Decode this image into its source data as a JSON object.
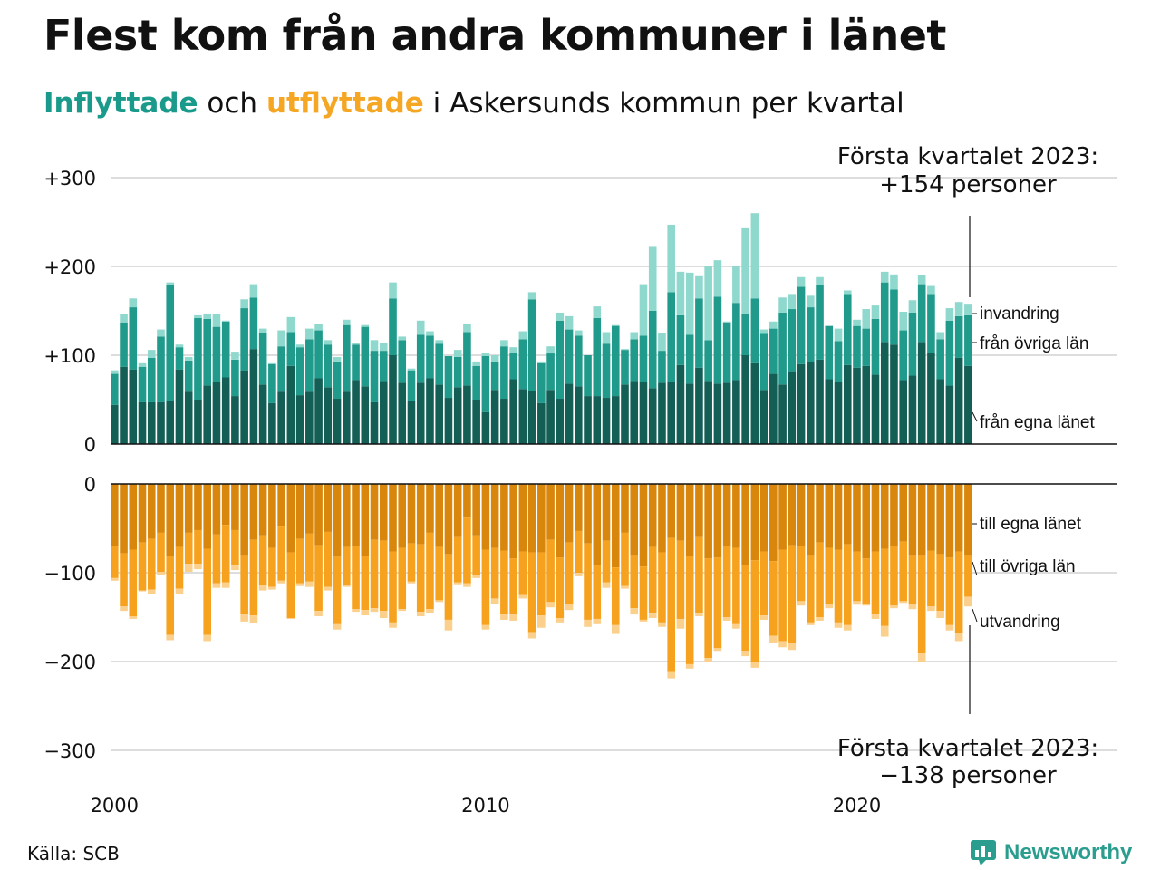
{
  "title": "Flest kom från andra kommuner i länet",
  "subtitle": {
    "part1": "Inflyttade",
    "part2": " och ",
    "part3": "utflyttade",
    "part4": " i Askersunds kommun per kvartal"
  },
  "annotations": {
    "top_line1": "Första kvartalet 2023:",
    "top_line2": "+154 personer",
    "bottom_line1": "Första kvartalet 2023:",
    "bottom_line2": "−138 personer"
  },
  "source": "Källa: SCB",
  "brand": "Newsworthy",
  "colors": {
    "in_own": "#135e55",
    "in_other": "#1f9a8b",
    "in_immigration": "#8fd8cd",
    "out_own": "#d9860c",
    "out_other": "#f7a21f",
    "out_emigration": "#fbd08c",
    "grid": "#dddddd",
    "brand": "#2a9d8f"
  },
  "chart_data": {
    "type": "bar",
    "stacked": true,
    "x_start": "2000 Q1",
    "x_end": "2023 Q1",
    "x_ticks": [
      "2000",
      "2010",
      "2020"
    ],
    "inflow": {
      "ylim": [
        0,
        300
      ],
      "y_ticks": [
        "0",
        "+100",
        "+200",
        "+300"
      ],
      "series": [
        {
          "name": "från egna länet",
          "values": [
            44,
            87,
            84,
            47,
            47,
            47,
            48,
            84,
            59,
            50,
            66,
            70,
            75,
            54,
            83,
            107,
            67,
            46,
            59,
            88,
            55,
            59,
            74,
            64,
            51,
            59,
            72,
            65,
            47,
            71,
            100,
            69,
            49,
            69,
            74,
            67,
            52,
            64,
            66,
            50,
            36,
            61,
            51,
            73,
            62,
            60,
            46,
            61,
            51,
            68,
            65,
            54,
            54,
            52,
            54,
            67,
            71,
            70,
            63,
            69,
            70,
            89,
            68,
            86,
            71,
            68,
            69,
            72,
            100,
            91,
            61,
            79,
            67,
            82,
            90,
            92,
            95,
            73,
            70,
            89,
            86,
            88,
            78,
            115,
            112,
            72,
            77,
            115,
            103,
            73,
            66,
            97,
            88
          ],
          "note": "approx"
        },
        {
          "name": "från övriga län",
          "values": [
            35,
            50,
            70,
            40,
            50,
            74,
            131,
            25,
            35,
            92,
            75,
            62,
            63,
            41,
            70,
            58,
            58,
            44,
            51,
            38,
            54,
            59,
            54,
            48,
            42,
            75,
            40,
            67,
            58,
            34,
            64,
            48,
            34,
            54,
            48,
            46,
            47,
            34,
            60,
            38,
            63,
            31,
            59,
            30,
            56,
            103,
            45,
            41,
            88,
            61,
            57,
            46,
            88,
            61,
            79,
            39,
            47,
            52,
            87,
            36,
            101,
            56,
            55,
            78,
            46,
            98,
            68,
            87,
            46,
            73,
            63,
            51,
            81,
            70,
            87,
            62,
            84,
            60,
            46,
            80,
            47,
            42,
            63,
            67,
            62,
            56,
            71,
            65,
            66,
            45,
            73,
            47,
            57
          ]
        },
        {
          "name": "invandring",
          "values": [
            4,
            9,
            10,
            4,
            9,
            8,
            3,
            3,
            4,
            3,
            6,
            14,
            1,
            9,
            10,
            15,
            5,
            1,
            18,
            17,
            3,
            12,
            7,
            5,
            5,
            6,
            2,
            2,
            12,
            9,
            18,
            4,
            2,
            16,
            5,
            4,
            0,
            8,
            9,
            5,
            4,
            8,
            7,
            6,
            9,
            8,
            2,
            8,
            9,
            15,
            6,
            0,
            13,
            13,
            1,
            1,
            8,
            58,
            73,
            20,
            76,
            49,
            70,
            25,
            84,
            41,
            1,
            42,
            97,
            96,
            5,
            8,
            17,
            17,
            11,
            13,
            9,
            0,
            14,
            4,
            7,
            22,
            15,
            12,
            17,
            21,
            14,
            10,
            9,
            8,
            14,
            16,
            12
          ]
        }
      ]
    },
    "outflow": {
      "ylim": [
        -300,
        0
      ],
      "y_ticks": [
        "0",
        "−100",
        "−200",
        "−300"
      ],
      "series": [
        {
          "name": "till egna länet",
          "values": [
            -70,
            -78,
            -74,
            -66,
            -62,
            -55,
            -81,
            -71,
            -55,
            -52,
            -73,
            -57,
            -46,
            -52,
            -80,
            -63,
            -58,
            -72,
            -47,
            -77,
            -62,
            -56,
            -69,
            -54,
            -82,
            -71,
            -70,
            -81,
            -63,
            -64,
            -76,
            -72,
            -67,
            -68,
            -55,
            -71,
            -79,
            -60,
            -38,
            -58,
            -74,
            -72,
            -75,
            -84,
            -76,
            -77,
            -77,
            -63,
            -83,
            -66,
            -53,
            -67,
            -91,
            -64,
            -94,
            -55,
            -80,
            -93,
            -71,
            -77,
            -61,
            -64,
            -81,
            -60,
            -84,
            -83,
            -70,
            -72,
            -91,
            -86,
            -76,
            -87,
            -74,
            -69,
            -70,
            -80,
            -66,
            -72,
            -74,
            -68,
            -76,
            -84,
            -76,
            -73,
            -70,
            -65,
            -80,
            -80,
            -75,
            -79,
            -83,
            -76,
            -80
          ]
        },
        {
          "name": "till övriga län",
          "values": [
            -36,
            -60,
            -75,
            -54,
            -57,
            -44,
            -89,
            -47,
            -35,
            -38,
            -97,
            -55,
            -65,
            -40,
            -67,
            -85,
            -56,
            -44,
            -62,
            -74,
            -50,
            -54,
            -74,
            -62,
            -76,
            -43,
            -71,
            -61,
            -77,
            -79,
            -80,
            -69,
            -43,
            -76,
            -86,
            -60,
            -74,
            -51,
            -74,
            -45,
            -85,
            -57,
            -72,
            -63,
            -49,
            -90,
            -71,
            -70,
            -68,
            -70,
            -47,
            -86,
            -61,
            -47,
            -65,
            -60,
            -60,
            -60,
            -74,
            -79,
            -150,
            -88,
            -122,
            -85,
            -112,
            -102,
            -80,
            -86,
            -97,
            -115,
            -72,
            -84,
            -103,
            -110,
            -62,
            -76,
            -84,
            -63,
            -82,
            -91,
            -56,
            -51,
            -71,
            -87,
            -67,
            -67,
            -55,
            -111,
            -63,
            -64,
            -76,
            -92,
            -47
          ]
        },
        {
          "name": "utvandring",
          "values": [
            -3,
            -5,
            -3,
            -1,
            -5,
            -4,
            -6,
            -6,
            -9,
            -6,
            -7,
            -5,
            -6,
            -5,
            -8,
            -9,
            -6,
            -3,
            -3,
            -1,
            -3,
            -6,
            -6,
            -4,
            -6,
            -2,
            -3,
            -6,
            -4,
            -8,
            -6,
            -2,
            -2,
            -5,
            -4,
            -2,
            -12,
            -2,
            -4,
            -3,
            -5,
            -6,
            -6,
            -7,
            -4,
            -7,
            -14,
            -6,
            -5,
            -6,
            -4,
            -8,
            -6,
            -6,
            -10,
            -3,
            -7,
            -2,
            -6,
            -5,
            -8,
            -11,
            -5,
            -4,
            -4,
            -3,
            -4,
            -5,
            -6,
            -6,
            -5,
            -8,
            -7,
            -8,
            -5,
            -3,
            -4,
            -5,
            -6,
            -6,
            -4,
            -2,
            -5,
            -12,
            -3,
            -2,
            -6,
            -10,
            -5,
            -8,
            -6,
            -9,
            -11
          ]
        }
      ]
    },
    "series_labels": {
      "invandring": "invandring",
      "from_other": "från övriga län",
      "from_own": "från egna länet",
      "to_own": "till egna länet",
      "to_other": "till övriga län",
      "emigration": "utvandring"
    },
    "grid": true
  }
}
